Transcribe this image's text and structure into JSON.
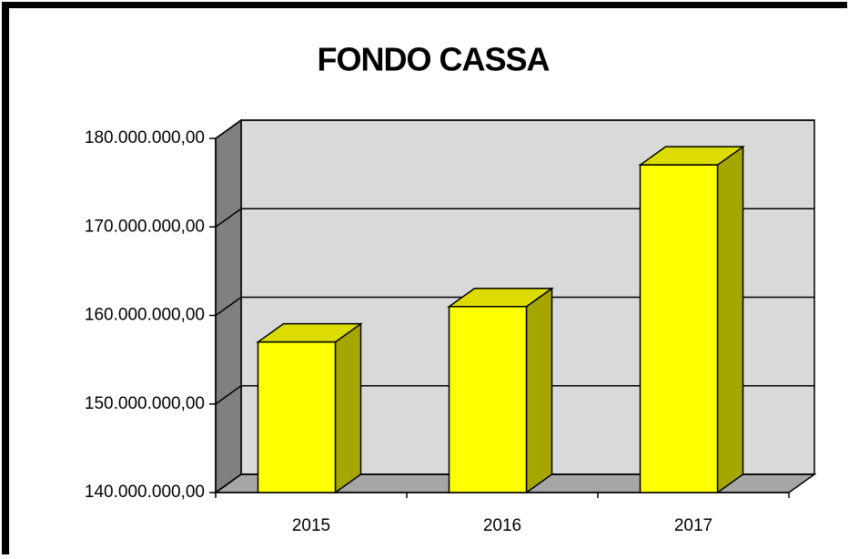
{
  "chart_data": {
    "type": "bar",
    "title": "FONDO CASSA",
    "categories": [
      "2015",
      "2016",
      "2017"
    ],
    "values": [
      157000000,
      161000000,
      177000000
    ],
    "color": "#ffff00",
    "ylim": [
      140000000,
      180000000
    ],
    "yticks": [
      {
        "value": 140000000,
        "label": "140.000.000,00"
      },
      {
        "value": 150000000,
        "label": "150.000.000,00"
      },
      {
        "value": 160000000,
        "label": "160.000.000,00"
      },
      {
        "value": 170000000,
        "label": "170.000.000,00"
      },
      {
        "value": 180000000,
        "label": "180.000.000,00"
      }
    ],
    "grid": true
  }
}
